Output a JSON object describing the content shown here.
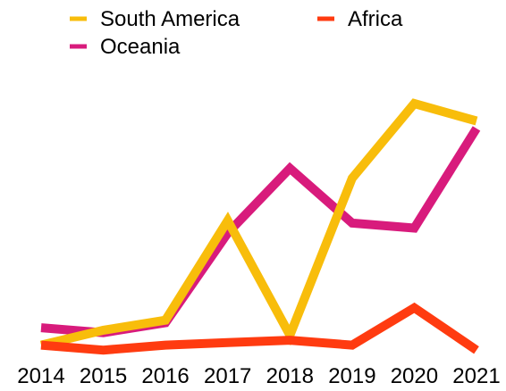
{
  "chart_data": {
    "type": "line",
    "title": "",
    "xlabel": "",
    "ylabel": "",
    "x": [
      "2014",
      "2015",
      "2016",
      "2017",
      "2018",
      "2019",
      "2020",
      "2021"
    ],
    "ylim": [
      0,
      100
    ],
    "grid": false,
    "legend_position": "top",
    "series": [
      {
        "name": "South America",
        "color": "#F8BD0B",
        "values": [
          3,
          9,
          13,
          53,
          7,
          70,
          100,
          93
        ]
      },
      {
        "name": "Africa",
        "color": "#FF3B10",
        "values": [
          3,
          1,
          3,
          4,
          5,
          3,
          18,
          1
        ]
      },
      {
        "name": "Oceania",
        "color": "#D81B7C",
        "values": [
          10,
          8,
          12,
          48,
          74,
          52,
          50,
          90
        ]
      }
    ]
  }
}
